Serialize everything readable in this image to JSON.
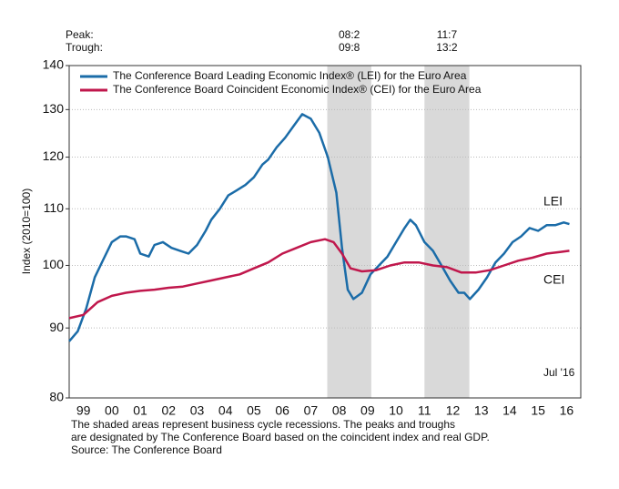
{
  "chart_data": {
    "type": "line",
    "yscale": "log",
    "ylabel": "Index (2010=100)",
    "xlim": [
      1999,
      2017
    ],
    "ylim": [
      80,
      140
    ],
    "yticks": [
      80,
      90,
      100,
      110,
      120,
      130,
      140
    ],
    "grid": true,
    "xticks": [
      {
        "value": 1999.5,
        "label": "99"
      },
      {
        "value": 2000.5,
        "label": "00"
      },
      {
        "value": 2001.5,
        "label": "01"
      },
      {
        "value": 2002.5,
        "label": "02"
      },
      {
        "value": 2003.5,
        "label": "03"
      },
      {
        "value": 2004.5,
        "label": "04"
      },
      {
        "value": 2005.5,
        "label": "05"
      },
      {
        "value": 2006.5,
        "label": "06"
      },
      {
        "value": 2007.5,
        "label": "07"
      },
      {
        "value": 2008.5,
        "label": "08"
      },
      {
        "value": 2009.5,
        "label": "09"
      },
      {
        "value": 2010.5,
        "label": "10"
      },
      {
        "value": 2011.5,
        "label": "11"
      },
      {
        "value": 2012.5,
        "label": "12"
      },
      {
        "value": 2013.5,
        "label": "13"
      },
      {
        "value": 2014.5,
        "label": "14"
      },
      {
        "value": 2015.5,
        "label": "15"
      },
      {
        "value": 2016.5,
        "label": "16"
      }
    ],
    "recessions": {
      "peak_label": "Peak:",
      "trough_label": "Trough:",
      "color": "#d9d9d9",
      "periods": [
        {
          "start": 2008.08,
          "end": 2009.63,
          "peak": "08:2",
          "trough": "09:8"
        },
        {
          "start": 2011.5,
          "end": 2013.08,
          "peak": "11:7",
          "trough": "13:2"
        }
      ]
    },
    "series": [
      {
        "name": "The Conference Board Leading Economic Index® (LEI) for the Euro Area",
        "short_label": "LEI",
        "color": "#1b6ca8",
        "x": [
          1999.0,
          1999.3,
          1999.6,
          1999.9,
          2000.2,
          2000.5,
          2000.8,
          2001.0,
          2001.3,
          2001.5,
          2001.8,
          2002.0,
          2002.3,
          2002.6,
          2002.9,
          2003.2,
          2003.5,
          2003.8,
          2004.0,
          2004.3,
          2004.6,
          2004.9,
          2005.2,
          2005.5,
          2005.8,
          2006.0,
          2006.3,
          2006.6,
          2006.9,
          2007.2,
          2007.5,
          2007.8,
          2008.1,
          2008.4,
          2008.6,
          2008.8,
          2009.0,
          2009.3,
          2009.6,
          2009.9,
          2010.2,
          2010.5,
          2010.8,
          2011.0,
          2011.2,
          2011.5,
          2011.8,
          2012.1,
          2012.4,
          2012.7,
          2012.9,
          2013.1,
          2013.4,
          2013.7,
          2014.0,
          2014.3,
          2014.6,
          2014.9,
          2015.2,
          2015.5,
          2015.8,
          2016.1,
          2016.4,
          2016.6
        ],
        "values": [
          88,
          89.5,
          93,
          98,
          101,
          104,
          105,
          105,
          104.5,
          102,
          101.5,
          103.5,
          104,
          103,
          102.5,
          102,
          103.5,
          106,
          108,
          110,
          112.5,
          113.5,
          114.5,
          116,
          118.5,
          119.5,
          122,
          124,
          126.5,
          129,
          128,
          125,
          120,
          113,
          103,
          96,
          94.5,
          95.5,
          98.5,
          100,
          101.5,
          104,
          106.5,
          108,
          107,
          104,
          102.5,
          100,
          97.5,
          95.5,
          95.5,
          94.5,
          96,
          98,
          100.5,
          102,
          104,
          105,
          106.5,
          106,
          107,
          107,
          107.5,
          107.2
        ]
      },
      {
        "name": "The Conference Board Coincident Economic Index® (CEI) for the Euro Area",
        "short_label": "CEI",
        "color": "#c0174c",
        "x": [
          1999.0,
          1999.5,
          2000.0,
          2000.5,
          2001.0,
          2001.5,
          2002.0,
          2002.5,
          2003.0,
          2003.5,
          2004.0,
          2004.5,
          2005.0,
          2005.5,
          2006.0,
          2006.5,
          2007.0,
          2007.5,
          2008.0,
          2008.3,
          2008.6,
          2008.9,
          2009.3,
          2009.8,
          2010.3,
          2010.8,
          2011.3,
          2011.8,
          2012.3,
          2012.8,
          2013.3,
          2013.8,
          2014.3,
          2014.8,
          2015.3,
          2015.8,
          2016.3,
          2016.6
        ],
        "values": [
          91.5,
          92,
          94,
          95,
          95.5,
          95.8,
          96,
          96.3,
          96.5,
          97,
          97.5,
          98,
          98.5,
          99.5,
          100.5,
          102,
          103,
          104,
          104.5,
          104,
          102,
          99.5,
          99,
          99.2,
          100,
          100.5,
          100.5,
          100,
          99.7,
          98.8,
          98.8,
          99.2,
          100,
          100.8,
          101.3,
          102,
          102.3,
          102.5
        ]
      }
    ],
    "annotation": "Jul '16",
    "notes": [
      "The shaded areas represent business cycle recessions. The peaks and troughs",
      "are designated by The Conference Board based on the coincident index and real GDP.",
      "Source: The Conference Board"
    ]
  }
}
